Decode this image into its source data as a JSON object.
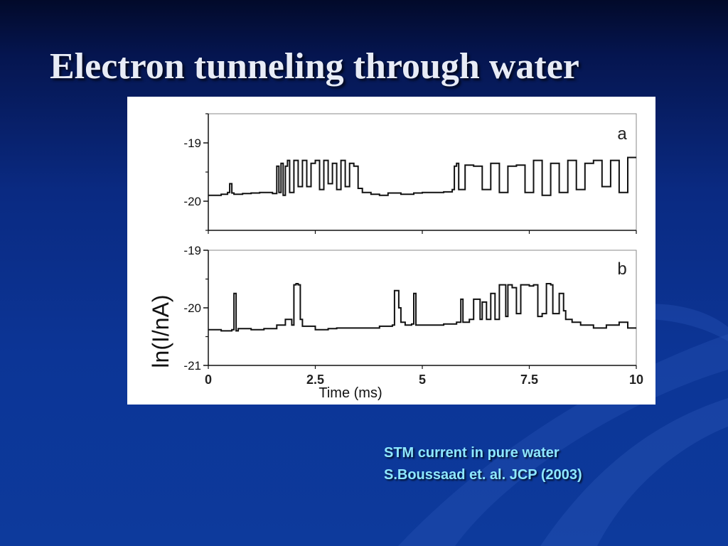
{
  "slide": {
    "title": "Electron tunneling through water",
    "caption_line1": "STM current in pure water",
    "caption_line2": "S.Boussaad et. al.  JCP (2003)"
  },
  "colors": {
    "background_top": "#020a2a",
    "background_bottom": "#0d3a9c",
    "title_text": "#e8ecf6",
    "caption_text": "#8ee8ff",
    "trace": "#111111"
  },
  "chart_data": [
    {
      "type": "line",
      "panel_label": "a",
      "xlim": [
        0,
        10
      ],
      "ylim": [
        -20.5,
        -18.5
      ],
      "yticks": [
        -19,
        -20
      ],
      "ytick_labels": [
        "-19",
        "-20"
      ],
      "series": [
        {
          "x": [
            0,
            0.3,
            0.45,
            0.5,
            0.55,
            0.6,
            0.8,
            1.0,
            1.2,
            1.5,
            1.6,
            1.65,
            1.7,
            1.75,
            1.8,
            1.85,
            1.9,
            2.0,
            2.1,
            2.2,
            2.3,
            2.4,
            2.5,
            2.6,
            2.7,
            2.8,
            2.9,
            3.0,
            3.1,
            3.2,
            3.3,
            3.4,
            3.5,
            3.6,
            3.8,
            4.0,
            4.2,
            4.5,
            4.8,
            5.0,
            5.2,
            5.5,
            5.7,
            5.75,
            5.8,
            5.85,
            6.0,
            6.2,
            6.4,
            6.6,
            6.8,
            7.0,
            7.2,
            7.4,
            7.6,
            7.8,
            8.0,
            8.2,
            8.4,
            8.6,
            8.8,
            9.0,
            9.2,
            9.4,
            9.6,
            9.8,
            10.0
          ],
          "y": [
            -19.9,
            -19.88,
            -19.85,
            -19.7,
            -19.86,
            -19.88,
            -19.87,
            -19.86,
            -19.85,
            -19.87,
            -19.4,
            -19.85,
            -19.35,
            -19.9,
            -19.4,
            -19.3,
            -19.85,
            -19.3,
            -19.75,
            -19.3,
            -19.75,
            -19.35,
            -19.3,
            -19.8,
            -19.3,
            -19.7,
            -19.35,
            -19.8,
            -19.3,
            -19.75,
            -19.35,
            -19.4,
            -19.78,
            -19.85,
            -19.88,
            -19.9,
            -19.86,
            -19.88,
            -19.86,
            -19.85,
            -19.85,
            -19.84,
            -19.8,
            -19.4,
            -19.35,
            -19.8,
            -19.38,
            -19.4,
            -19.8,
            -19.35,
            -19.85,
            -19.4,
            -19.38,
            -19.85,
            -19.3,
            -19.9,
            -19.35,
            -19.85,
            -19.3,
            -19.8,
            -19.35,
            -19.3,
            -19.75,
            -19.3,
            -19.85,
            -19.25,
            -19.25
          ]
        }
      ]
    },
    {
      "type": "line",
      "panel_label": "b",
      "xlabel": "Time (ms)",
      "ylabel": "ln(I/nA)",
      "xlim": [
        0,
        10
      ],
      "ylim": [
        -21,
        -19
      ],
      "xticks": [
        0,
        2.5,
        5,
        7.5,
        10
      ],
      "xtick_labels": [
        "0",
        "2.5",
        "5",
        "7.5",
        "10"
      ],
      "yticks": [
        -19,
        -20,
        -21
      ],
      "ytick_labels": [
        "-19",
        "-20",
        "-21"
      ],
      "series": [
        {
          "x": [
            0,
            0.3,
            0.55,
            0.6,
            0.65,
            0.7,
            1.0,
            1.3,
            1.6,
            1.8,
            1.95,
            2.0,
            2.05,
            2.1,
            2.15,
            2.2,
            2.5,
            2.8,
            3.0,
            3.5,
            4.0,
            4.3,
            4.35,
            4.4,
            4.45,
            4.5,
            4.6,
            4.75,
            4.8,
            4.85,
            5.0,
            5.5,
            5.8,
            5.9,
            5.95,
            6.1,
            6.2,
            6.35,
            6.4,
            6.5,
            6.6,
            6.7,
            6.8,
            6.9,
            6.95,
            7.0,
            7.1,
            7.2,
            7.3,
            7.4,
            7.5,
            7.6,
            7.7,
            7.8,
            7.9,
            8.0,
            8.05,
            8.2,
            8.3,
            8.35,
            8.5,
            8.7,
            9.0,
            9.3,
            9.6,
            9.8,
            10.0
          ],
          "y": [
            -20.38,
            -20.4,
            -20.38,
            -19.75,
            -20.4,
            -20.36,
            -20.38,
            -20.36,
            -20.3,
            -20.2,
            -20.3,
            -19.6,
            -19.58,
            -19.6,
            -20.2,
            -20.32,
            -20.38,
            -20.36,
            -20.35,
            -20.35,
            -20.32,
            -20.3,
            -19.7,
            -19.7,
            -20.0,
            -20.25,
            -20.3,
            -20.28,
            -19.75,
            -20.3,
            -20.3,
            -20.28,
            -20.25,
            -19.85,
            -20.25,
            -20.2,
            -19.85,
            -20.2,
            -19.9,
            -20.2,
            -19.75,
            -20.2,
            -19.6,
            -19.6,
            -20.15,
            -19.6,
            -19.65,
            -20.1,
            -19.6,
            -19.6,
            -19.62,
            -19.6,
            -20.15,
            -20.1,
            -19.58,
            -19.6,
            -20.1,
            -19.75,
            -20.05,
            -20.2,
            -20.25,
            -20.3,
            -20.35,
            -20.3,
            -20.25,
            -20.35,
            -20.35
          ]
        }
      ]
    }
  ]
}
